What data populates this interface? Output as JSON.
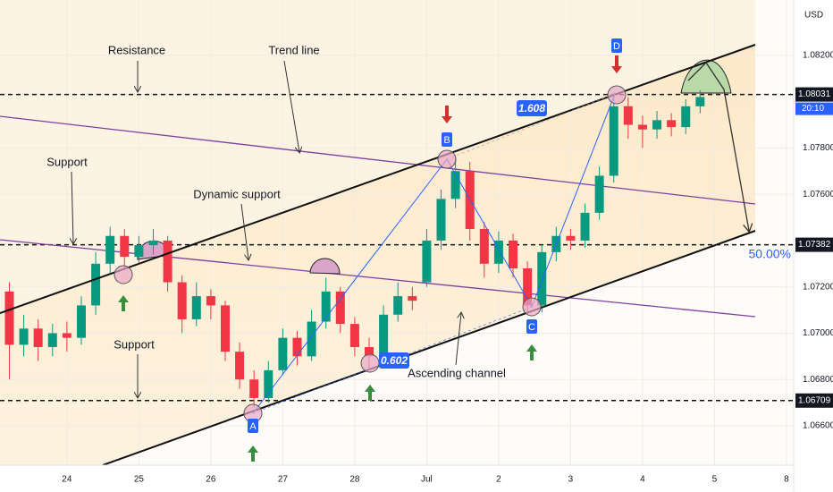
{
  "chart_data": {
    "type": "candlestick",
    "currency": "USD",
    "x": [
      -0.8,
      -0.6,
      -0.4,
      -0.2,
      0,
      0.2,
      0.4,
      0.6,
      0.8,
      1,
      1.2,
      1.4,
      1.6,
      1.8,
      2,
      2.2,
      2.4,
      2.6,
      2.8,
      3,
      3.2,
      3.4,
      3.6,
      3.8,
      4,
      4.2,
      4.4,
      4.6,
      4.8,
      5,
      5.2,
      5.4,
      5.6,
      5.8,
      6,
      6.2,
      6.4,
      6.6,
      6.8,
      7,
      7.2,
      7.4,
      7.6,
      7.8,
      8,
      8.2,
      8.4,
      8.6,
      8.8
    ],
    "open": [
      1.0718,
      1.0695,
      1.0702,
      1.0694,
      1.07,
      1.0698,
      1.0712,
      1.073,
      1.0742,
      1.0733,
      1.0738,
      1.074,
      1.0722,
      1.0706,
      1.0716,
      1.0712,
      1.0692,
      1.068,
      1.0672,
      1.0684,
      1.0698,
      1.069,
      1.0705,
      1.0718,
      1.0704,
      1.0694,
      1.069,
      1.0708,
      1.0716,
      1.0722,
      1.074,
      1.0758,
      1.077,
      1.0745,
      1.073,
      1.074,
      1.0728,
      1.0712,
      1.0735,
      1.0742,
      1.074,
      1.0752,
      1.0768,
      1.0798,
      1.079,
      1.0788,
      1.0792,
      1.0789,
      1.0798
    ],
    "high": [
      1.0722,
      1.0708,
      1.0706,
      1.0704,
      1.0705,
      1.0716,
      1.0735,
      1.0746,
      1.0745,
      1.0742,
      1.0745,
      1.0742,
      1.0725,
      1.0722,
      1.0719,
      1.0714,
      1.0696,
      1.0684,
      1.0688,
      1.0702,
      1.0701,
      1.071,
      1.0724,
      1.072,
      1.0707,
      1.0698,
      1.0712,
      1.0722,
      1.072,
      1.0745,
      1.0762,
      1.0776,
      1.0774,
      1.0748,
      1.0744,
      1.0743,
      1.0731,
      1.0738,
      1.0746,
      1.0745,
      1.0756,
      1.0772,
      1.0804,
      1.0802,
      1.0794,
      1.0796,
      1.0795,
      1.0801,
      1.0805
    ],
    "low": [
      1.068,
      1.069,
      1.0688,
      1.069,
      1.0692,
      1.0695,
      1.0708,
      1.0726,
      1.0728,
      1.073,
      1.0734,
      1.0718,
      1.07,
      1.0703,
      1.0706,
      1.0688,
      1.0676,
      1.0668,
      1.067,
      1.0682,
      1.0686,
      1.0688,
      1.0702,
      1.07,
      1.069,
      1.0684,
      1.0688,
      1.0705,
      1.071,
      1.072,
      1.0736,
      1.0754,
      1.074,
      1.0724,
      1.0726,
      1.0724,
      1.0708,
      1.0709,
      1.0731,
      1.0736,
      1.0737,
      1.0749,
      1.0765,
      1.0784,
      1.078,
      1.0784,
      1.0785,
      1.0786,
      1.0795
    ],
    "close": [
      1.0695,
      1.0702,
      1.0694,
      1.07,
      1.0698,
      1.0712,
      1.073,
      1.0742,
      1.0733,
      1.0738,
      1.074,
      1.0722,
      1.0706,
      1.0716,
      1.0712,
      1.0692,
      1.068,
      1.0672,
      1.0684,
      1.0698,
      1.069,
      1.0705,
      1.0718,
      1.0704,
      1.0694,
      1.069,
      1.0708,
      1.0716,
      1.0714,
      1.074,
      1.0758,
      1.077,
      1.0745,
      1.073,
      1.074,
      1.0728,
      1.0712,
      1.0735,
      1.0742,
      1.074,
      1.0752,
      1.0768,
      1.0798,
      1.079,
      1.0788,
      1.0792,
      1.0789,
      1.0798,
      1.0802
    ],
    "up_color": "#089981",
    "down_color": "#f23645",
    "xlim": [
      -0.93,
      10.1
    ],
    "xticks": [
      {
        "value": 0,
        "label": "24"
      },
      {
        "value": 1,
        "label": "25"
      },
      {
        "value": 2,
        "label": "26"
      },
      {
        "value": 3,
        "label": "27"
      },
      {
        "value": 4,
        "label": "28"
      },
      {
        "value": 5,
        "label": "Jul"
      },
      {
        "value": 6,
        "label": "2"
      },
      {
        "value": 7,
        "label": "3"
      },
      {
        "value": 8,
        "label": "4"
      },
      {
        "value": 9,
        "label": "5"
      },
      {
        "value": 10,
        "label": "8"
      }
    ],
    "ylim": [
      1.0643,
      1.08439
    ],
    "yticks": [
      {
        "value": 1.082,
        "label": "1.08200"
      },
      {
        "value": 1.078,
        "label": "1.07800"
      },
      {
        "value": 1.076,
        "label": "1.07600"
      },
      {
        "value": 1.072,
        "label": "1.07200"
      },
      {
        "value": 1.07,
        "label": "1.07000"
      },
      {
        "value": 1.068,
        "label": "1.06800"
      },
      {
        "value": 1.066,
        "label": "1.06600"
      }
    ],
    "levels": [
      {
        "value": 1.08031,
        "label": "1.08031"
      },
      {
        "value": 1.07382,
        "label": "1.07382"
      },
      {
        "value": 1.06709,
        "label": "1.06709"
      }
    ],
    "countdown": "20:10",
    "annotations": {
      "resistance": "Resistance",
      "trend_line": "Trend line",
      "support_top": "Support",
      "dynamic_support": "Dynamic support",
      "support_bottom": "Support",
      "ascending_channel": "Ascending channel",
      "fib_percent": "50.00%",
      "fib_bc": "1.608",
      "fib_ab": "0.602",
      "point_a": "A",
      "point_b": "B",
      "point_c": "C",
      "point_d": "D"
    }
  }
}
